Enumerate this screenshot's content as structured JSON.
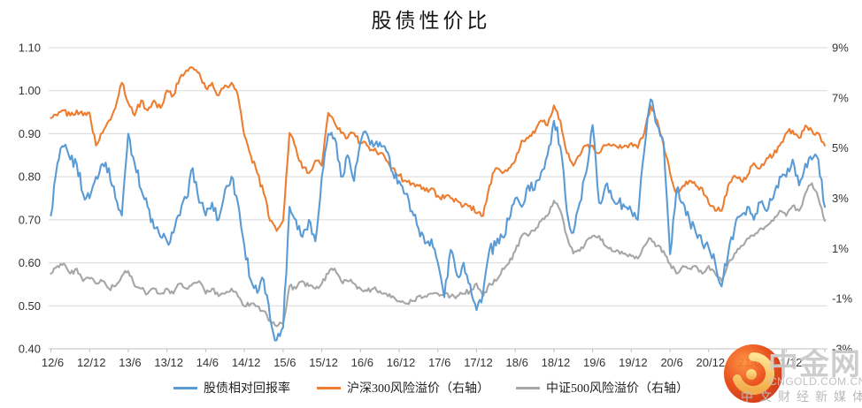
{
  "title": "股债性价比",
  "legend": [
    {
      "label": "股债相对回报率",
      "color": "#5B9BD5"
    },
    {
      "label": "沪深300风险溢价（右轴）",
      "color": "#ED7D31"
    },
    {
      "label": "中证500风险溢价（右轴）",
      "color": "#A6A6A6"
    }
  ],
  "watermark": {
    "brand": "中金网",
    "domain": "CNGOLD.COM.CN",
    "tagline": "中文财经新媒体"
  },
  "colors": {
    "gridline": "#d9d9d9",
    "axis_line": "#bfbfbf",
    "label": "#333333"
  },
  "chart_data": {
    "type": "line",
    "title": "股债性价比",
    "grid": "horizontal-only",
    "legend_position": "bottom",
    "x_start": "2012/6",
    "x_end": "2022/6",
    "x_step_months": 1,
    "x_tick_labels": [
      "12/6",
      "12/12",
      "13/6",
      "13/12",
      "14/6",
      "14/12",
      "15/6",
      "15/12",
      "16/6",
      "16/12",
      "17/6",
      "17/12",
      "18/6",
      "18/12",
      "19/6",
      "19/12",
      "20/6",
      "20/12",
      "21/6",
      "21/12"
    ],
    "left_axis": {
      "tick_labels": [
        "1.10",
        "1.00",
        "0.90",
        "0.80",
        "0.70",
        "0.60",
        "0.50",
        "0.40"
      ],
      "min": 0.4,
      "max": 1.1
    },
    "right_axis": {
      "tick_labels": [
        "9%",
        "7%",
        "5%",
        "3%",
        "1%",
        "-1%",
        "-3%"
      ],
      "min": -3,
      "max": 9
    },
    "series": [
      {
        "name": "股债相对回报率",
        "axis": "left",
        "color": "#5B9BD5",
        "noise": 0.016,
        "values": [
          0.71,
          0.83,
          0.87,
          0.84,
          0.83,
          0.76,
          0.75,
          0.8,
          0.83,
          0.82,
          0.75,
          0.71,
          0.9,
          0.83,
          0.77,
          0.73,
          0.68,
          0.66,
          0.65,
          0.67,
          0.71,
          0.75,
          0.82,
          0.74,
          0.71,
          0.74,
          0.7,
          0.77,
          0.8,
          0.74,
          0.64,
          0.56,
          0.53,
          0.56,
          0.47,
          0.42,
          0.45,
          0.73,
          0.7,
          0.66,
          0.7,
          0.65,
          0.8,
          0.9,
          0.89,
          0.8,
          0.85,
          0.79,
          0.88,
          0.9,
          0.87,
          0.88,
          0.86,
          0.81,
          0.79,
          0.76,
          0.72,
          0.68,
          0.645,
          0.655,
          0.6,
          0.52,
          0.63,
          0.57,
          0.6,
          0.55,
          0.49,
          0.53,
          0.63,
          0.64,
          0.66,
          0.7,
          0.75,
          0.73,
          0.78,
          0.77,
          0.81,
          0.85,
          0.93,
          0.87,
          0.72,
          0.67,
          0.74,
          0.81,
          0.92,
          0.74,
          0.78,
          0.75,
          0.74,
          0.73,
          0.72,
          0.7,
          0.86,
          0.98,
          0.92,
          0.88,
          0.62,
          0.77,
          0.74,
          0.7,
          0.67,
          0.645,
          0.635,
          0.6,
          0.545,
          0.62,
          0.68,
          0.71,
          0.73,
          0.7,
          0.74,
          0.72,
          0.75,
          0.8,
          0.8,
          0.84,
          0.78,
          0.83,
          0.84,
          0.84,
          0.73
        ]
      },
      {
        "name": "沪深300风险溢价（右轴）",
        "axis": "right",
        "color": "#ED7D31",
        "noise": 0.14,
        "values": [
          6.2,
          6.3,
          6.5,
          6.3,
          6.5,
          6.3,
          6.4,
          5.1,
          5.6,
          6.1,
          6.6,
          7.6,
          6.8,
          6.3,
          6.9,
          6.5,
          6.9,
          6.6,
          7.3,
          7.1,
          7.8,
          8.1,
          8.2,
          8.0,
          7.4,
          7.6,
          7.1,
          7.5,
          7.6,
          7.1,
          5.5,
          4.7,
          4.0,
          3.2,
          2.1,
          1.7,
          2.1,
          5.6,
          5.0,
          4.2,
          4.0,
          4.5,
          4.3,
          6.4,
          6.0,
          5.6,
          5.4,
          5.6,
          5.2,
          5.1,
          4.9,
          4.8,
          4.5,
          4.2,
          3.9,
          3.7,
          3.6,
          3.5,
          3.3,
          3.4,
          3.1,
          3.0,
          3.0,
          2.9,
          2.7,
          2.7,
          2.4,
          2.3,
          3.5,
          4.2,
          4.0,
          4.2,
          4.5,
          5.3,
          5.4,
          5.6,
          6.1,
          5.9,
          6.7,
          6.1,
          4.8,
          4.3,
          4.7,
          5.1,
          5.1,
          4.8,
          5.1,
          5.1,
          5.0,
          5.1,
          5.2,
          5.0,
          5.6,
          6.7,
          6.1,
          5.1,
          4.0,
          3.2,
          3.5,
          3.7,
          3.5,
          3.4,
          2.8,
          2.5,
          2.5,
          3.5,
          3.9,
          3.7,
          3.9,
          4.4,
          4.2,
          4.6,
          4.7,
          5.1,
          5.6,
          5.7,
          5.4,
          5.9,
          5.7,
          5.6,
          5.1
        ]
      },
      {
        "name": "中证500风险溢价（右轴）",
        "axis": "right",
        "color": "#A6A6A6",
        "noise": 0.11,
        "values": [
          0.0,
          0.3,
          0.4,
          0.0,
          0.2,
          -0.3,
          -0.2,
          -0.4,
          -0.3,
          -0.6,
          -0.5,
          -0.1,
          0.1,
          -0.5,
          -0.6,
          -0.8,
          -0.6,
          -0.8,
          -0.6,
          -0.8,
          -0.4,
          -0.6,
          -0.4,
          -0.3,
          -0.8,
          -0.6,
          -0.9,
          -0.8,
          -0.6,
          -0.9,
          -1.3,
          -1.2,
          -1.3,
          -1.5,
          -1.9,
          -2.1,
          -2.0,
          -0.5,
          -0.6,
          -0.3,
          -0.5,
          -0.6,
          -0.4,
          0.0,
          0.2,
          -0.3,
          -0.3,
          -0.4,
          -0.6,
          -0.7,
          -0.6,
          -0.7,
          -0.8,
          -0.9,
          -1.1,
          -1.2,
          -1.1,
          -0.9,
          -0.9,
          -0.8,
          -0.8,
          -0.8,
          -0.9,
          -0.9,
          -0.8,
          -0.7,
          -0.4,
          -0.9,
          -0.4,
          -0.3,
          0.2,
          0.4,
          0.9,
          1.5,
          1.5,
          1.7,
          2.1,
          2.3,
          2.9,
          2.5,
          1.5,
          0.8,
          0.9,
          1.3,
          1.5,
          1.5,
          1.1,
          0.9,
          0.9,
          0.8,
          0.7,
          0.6,
          1.1,
          1.4,
          1.1,
          0.9,
          0.4,
          0.0,
          0.3,
          0.2,
          0.3,
          0.0,
          0.3,
          0.0,
          -0.3,
          0.4,
          0.8,
          1.1,
          1.4,
          1.5,
          1.8,
          1.9,
          2.1,
          2.5,
          2.3,
          2.7,
          2.5,
          3.2,
          3.6,
          3.0,
          2.1
        ]
      }
    ]
  }
}
